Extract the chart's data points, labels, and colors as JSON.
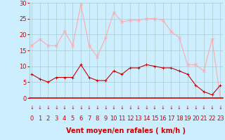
{
  "hours": [
    0,
    1,
    2,
    3,
    4,
    5,
    6,
    7,
    8,
    9,
    10,
    11,
    12,
    13,
    14,
    15,
    16,
    17,
    18,
    19,
    20,
    21,
    22,
    23
  ],
  "wind_avg": [
    7.5,
    6,
    5,
    6.5,
    6.5,
    6.5,
    10.5,
    6.5,
    5.5,
    5.5,
    8.5,
    7.5,
    9.5,
    9.5,
    10.5,
    10,
    9.5,
    9.5,
    8.5,
    7.5,
    4,
    2,
    1,
    4
  ],
  "wind_gust": [
    16.5,
    18.5,
    16.5,
    16.5,
    21,
    16.5,
    29.5,
    16.5,
    13,
    19,
    27,
    24,
    24.5,
    24.5,
    25,
    25,
    24.5,
    21,
    19,
    10.5,
    10.5,
    8.5,
    18.5,
    0
  ],
  "color_avg": "#cc0000",
  "color_gust": "#ffaaaa",
  "bg_color": "#cceeff",
  "grid_color": "#aacccc",
  "xlabel": "Vent moyen/en rafales ( km/h )",
  "ylim": [
    0,
    30
  ],
  "yticks": [
    0,
    5,
    10,
    15,
    20,
    25,
    30
  ],
  "label_fontsize": 7,
  "tick_fontsize": 6,
  "arrow_color": "#cc0000"
}
